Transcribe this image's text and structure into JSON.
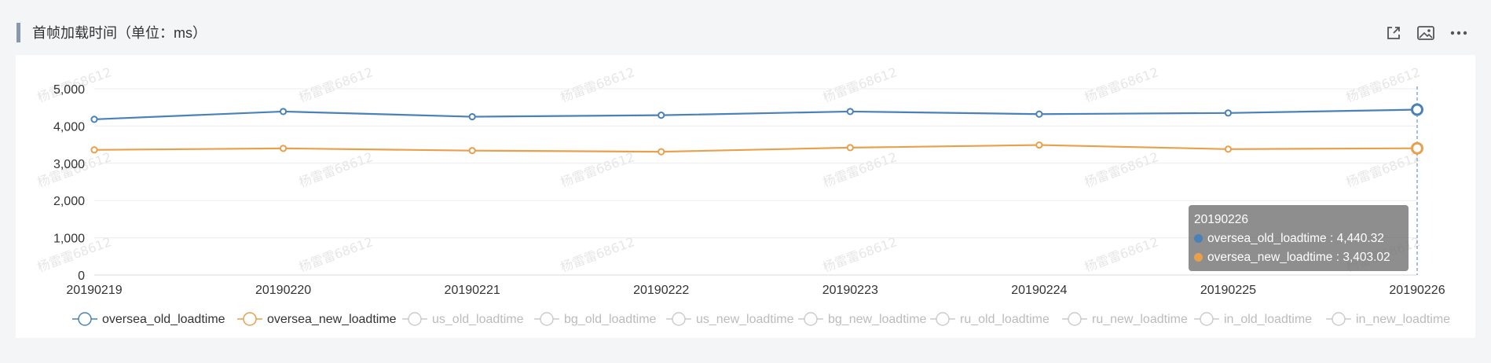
{
  "panel": {
    "title": "首帧加载时间（单位：ms）"
  },
  "toolbar": {
    "icons": [
      "share-icon",
      "image-icon",
      "more-icon"
    ]
  },
  "colors": {
    "series": [
      "#4a81b8",
      "#e8a04c"
    ],
    "inactive": "#cccccc",
    "grid": "#ececec",
    "watermark_text": "#e6e6e6"
  },
  "watermark": "杨雷雷68612",
  "tooltip": {
    "date": "20190226",
    "rows": [
      {
        "name": "oversea_old_loadtime",
        "value": "4,440.32",
        "color": "#4a81b8"
      },
      {
        "name": "oversea_new_loadtime",
        "value": "3,403.02",
        "color": "#e8a04c"
      }
    ]
  },
  "chart_data": {
    "type": "line",
    "title": "首帧加载时间（单位：ms）",
    "x": [
      "20190219",
      "20190220",
      "20190221",
      "20190222",
      "20190223",
      "20190224",
      "20190225",
      "20190226"
    ],
    "ylim": [
      0,
      5000
    ],
    "yticks": [
      0,
      1000,
      2000,
      3000,
      4000,
      5000
    ],
    "ytick_labels": [
      "0",
      "1,000",
      "2,000",
      "3,000",
      "4,000",
      "5,000"
    ],
    "series": [
      {
        "name": "oversea_old_loadtime",
        "values": [
          4180,
          4390,
          4250,
          4290,
          4390,
          4320,
          4350,
          4440.32
        ],
        "color": "#4a81b8",
        "active": true
      },
      {
        "name": "oversea_new_loadtime",
        "values": [
          3360,
          3400,
          3340,
          3310,
          3420,
          3490,
          3380,
          3403.02
        ],
        "color": "#e8a04c",
        "active": true
      }
    ],
    "legend": [
      {
        "name": "oversea_old_loadtime",
        "active": true,
        "color": "#4a81b8"
      },
      {
        "name": "oversea_new_loadtime",
        "active": true,
        "color": "#e8a04c"
      },
      {
        "name": "us_old_loadtime",
        "active": false
      },
      {
        "name": "bg_old_loadtime",
        "active": false
      },
      {
        "name": "us_new_loadtime",
        "active": false
      },
      {
        "name": "bg_new_loadtime",
        "active": false
      },
      {
        "name": "ru_old_loadtime",
        "active": false
      },
      {
        "name": "ru_new_loadtime",
        "active": false
      },
      {
        "name": "in_old_loadtime",
        "active": false
      },
      {
        "name": "in_new_loadtime",
        "active": false
      }
    ],
    "legend_position": "bottom",
    "grid": true,
    "highlighted_x": "20190226"
  }
}
